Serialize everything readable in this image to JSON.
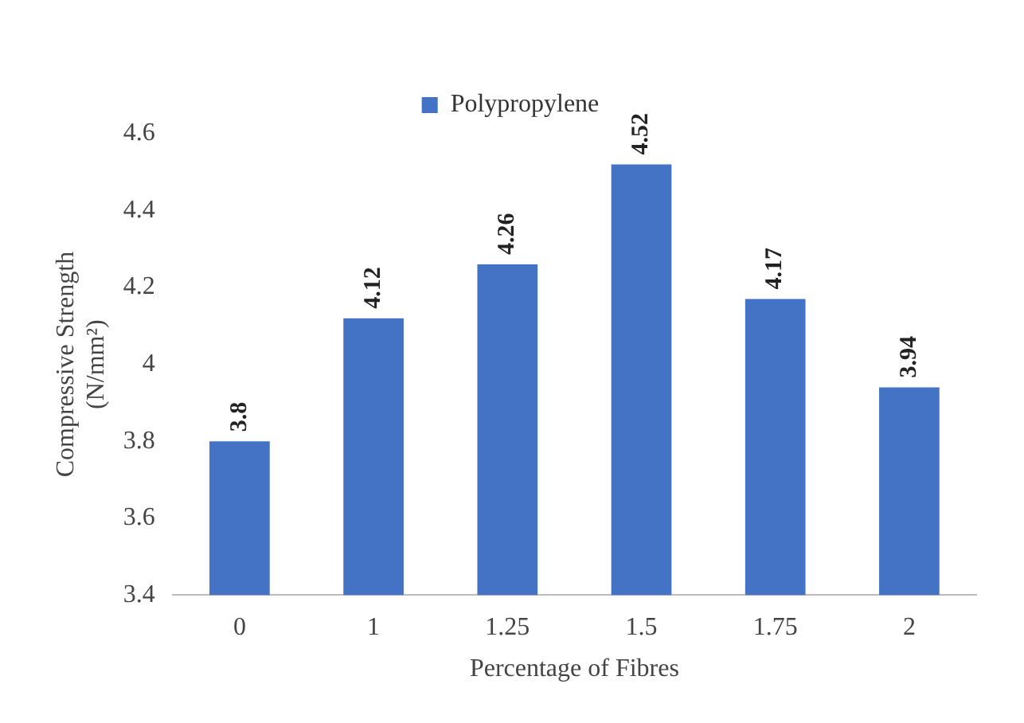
{
  "chart_data": {
    "type": "bar",
    "categories": [
      "0",
      "1",
      "1.25",
      "1.5",
      "1.75",
      "2"
    ],
    "series": [
      {
        "name": "Polypropylene",
        "color": "#4472c4",
        "values": [
          3.8,
          4.12,
          4.26,
          4.52,
          4.17,
          3.94
        ]
      }
    ],
    "xlabel": "Percentage of Fibres",
    "ylabel": "Compressive Strength (N/mm²)",
    "ylim": [
      3.4,
      4.6
    ],
    "yticks": [
      3.4,
      3.6,
      3.8,
      4,
      4.2,
      4.4,
      4.6
    ],
    "grid": false,
    "legend": "top",
    "data_labels": true
  }
}
